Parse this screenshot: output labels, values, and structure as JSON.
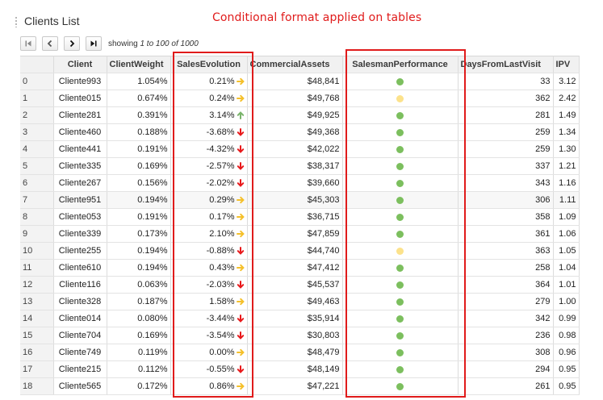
{
  "panel": {
    "title": "Clients List"
  },
  "annotation": "Conditional format applied on tables",
  "pager": {
    "buttons": [
      "first-page-icon",
      "previous-page-icon",
      "next-page-icon",
      "last-page-icon"
    ],
    "info_prefix": "showing ",
    "info_range": "1 to 100 of 1000"
  },
  "columns": [
    {
      "key": "idx",
      "label": ""
    },
    {
      "key": "client",
      "label": "Client"
    },
    {
      "key": "weight",
      "label": "ClientWeight"
    },
    {
      "key": "sales",
      "label": "SalesEvolution"
    },
    {
      "key": "assets",
      "label": "CommercialAssets"
    },
    {
      "key": "perf",
      "label": "SalesmanPerformance"
    },
    {
      "key": "days",
      "label": "DaysFromLastVisit"
    },
    {
      "key": "ipv",
      "label": "IPV"
    }
  ],
  "colors": {
    "arrow_up": "#79b36a",
    "arrow_flat": "#f5c02a",
    "arrow_down": "#e8191b",
    "perf_good": "#7cbf5e",
    "perf_mid": "#fce28b",
    "annotation": "#e01b1b"
  },
  "rows": [
    {
      "idx": "0",
      "client": "Cliente993",
      "weight": "1.054%",
      "sales": "0.21%",
      "trend": "flat",
      "assets": "$48,841",
      "perf": "green",
      "days": "33",
      "ipv": "3.12"
    },
    {
      "idx": "1",
      "client": "Cliente015",
      "weight": "0.674%",
      "sales": "0.24%",
      "trend": "flat",
      "assets": "$49,768",
      "perf": "yellow",
      "days": "362",
      "ipv": "2.42"
    },
    {
      "idx": "2",
      "client": "Cliente281",
      "weight": "0.391%",
      "sales": "3.14%",
      "trend": "up",
      "assets": "$49,925",
      "perf": "green",
      "days": "281",
      "ipv": "1.49"
    },
    {
      "idx": "3",
      "client": "Cliente460",
      "weight": "0.188%",
      "sales": "-3.68%",
      "trend": "down",
      "assets": "$49,368",
      "perf": "green",
      "days": "259",
      "ipv": "1.34"
    },
    {
      "idx": "4",
      "client": "Cliente441",
      "weight": "0.191%",
      "sales": "-4.32%",
      "trend": "down",
      "assets": "$42,022",
      "perf": "green",
      "days": "259",
      "ipv": "1.30"
    },
    {
      "idx": "5",
      "client": "Cliente335",
      "weight": "0.169%",
      "sales": "-2.57%",
      "trend": "down",
      "assets": "$38,317",
      "perf": "green",
      "days": "337",
      "ipv": "1.21"
    },
    {
      "idx": "6",
      "client": "Cliente267",
      "weight": "0.156%",
      "sales": "-2.02%",
      "trend": "down",
      "assets": "$39,660",
      "perf": "green",
      "days": "343",
      "ipv": "1.16"
    },
    {
      "idx": "7",
      "client": "Cliente951",
      "weight": "0.194%",
      "sales": "0.29%",
      "trend": "flat",
      "assets": "$45,303",
      "perf": "green",
      "days": "306",
      "ipv": "1.11"
    },
    {
      "idx": "8",
      "client": "Cliente053",
      "weight": "0.191%",
      "sales": "0.17%",
      "trend": "flat",
      "assets": "$36,715",
      "perf": "green",
      "days": "358",
      "ipv": "1.09"
    },
    {
      "idx": "9",
      "client": "Cliente339",
      "weight": "0.173%",
      "sales": "2.10%",
      "trend": "flat",
      "assets": "$47,859",
      "perf": "green",
      "days": "361",
      "ipv": "1.06"
    },
    {
      "idx": "10",
      "client": "Cliente255",
      "weight": "0.194%",
      "sales": "-0.88%",
      "trend": "down",
      "assets": "$44,740",
      "perf": "yellow",
      "days": "363",
      "ipv": "1.05"
    },
    {
      "idx": "11",
      "client": "Cliente610",
      "weight": "0.194%",
      "sales": "0.43%",
      "trend": "flat",
      "assets": "$47,412",
      "perf": "green",
      "days": "258",
      "ipv": "1.04"
    },
    {
      "idx": "12",
      "client": "Cliente116",
      "weight": "0.063%",
      "sales": "-2.03%",
      "trend": "down",
      "assets": "$45,537",
      "perf": "green",
      "days": "364",
      "ipv": "1.01"
    },
    {
      "idx": "13",
      "client": "Cliente328",
      "weight": "0.187%",
      "sales": "1.58%",
      "trend": "flat",
      "assets": "$49,463",
      "perf": "green",
      "days": "279",
      "ipv": "1.00"
    },
    {
      "idx": "14",
      "client": "Cliente014",
      "weight": "0.080%",
      "sales": "-3.44%",
      "trend": "down",
      "assets": "$35,914",
      "perf": "green",
      "days": "342",
      "ipv": "0.99"
    },
    {
      "idx": "15",
      "client": "Cliente704",
      "weight": "0.169%",
      "sales": "-3.54%",
      "trend": "down",
      "assets": "$30,803",
      "perf": "green",
      "days": "236",
      "ipv": "0.98"
    },
    {
      "idx": "16",
      "client": "Cliente749",
      "weight": "0.119%",
      "sales": "0.00%",
      "trend": "flat",
      "assets": "$48,479",
      "perf": "green",
      "days": "308",
      "ipv": "0.96"
    },
    {
      "idx": "17",
      "client": "Cliente215",
      "weight": "0.112%",
      "sales": "-0.55%",
      "trend": "down",
      "assets": "$48,149",
      "perf": "green",
      "days": "294",
      "ipv": "0.95"
    },
    {
      "idx": "18",
      "client": "Cliente565",
      "weight": "0.172%",
      "sales": "0.86%",
      "trend": "flat",
      "assets": "$47,221",
      "perf": "green",
      "days": "261",
      "ipv": "0.95"
    }
  ]
}
